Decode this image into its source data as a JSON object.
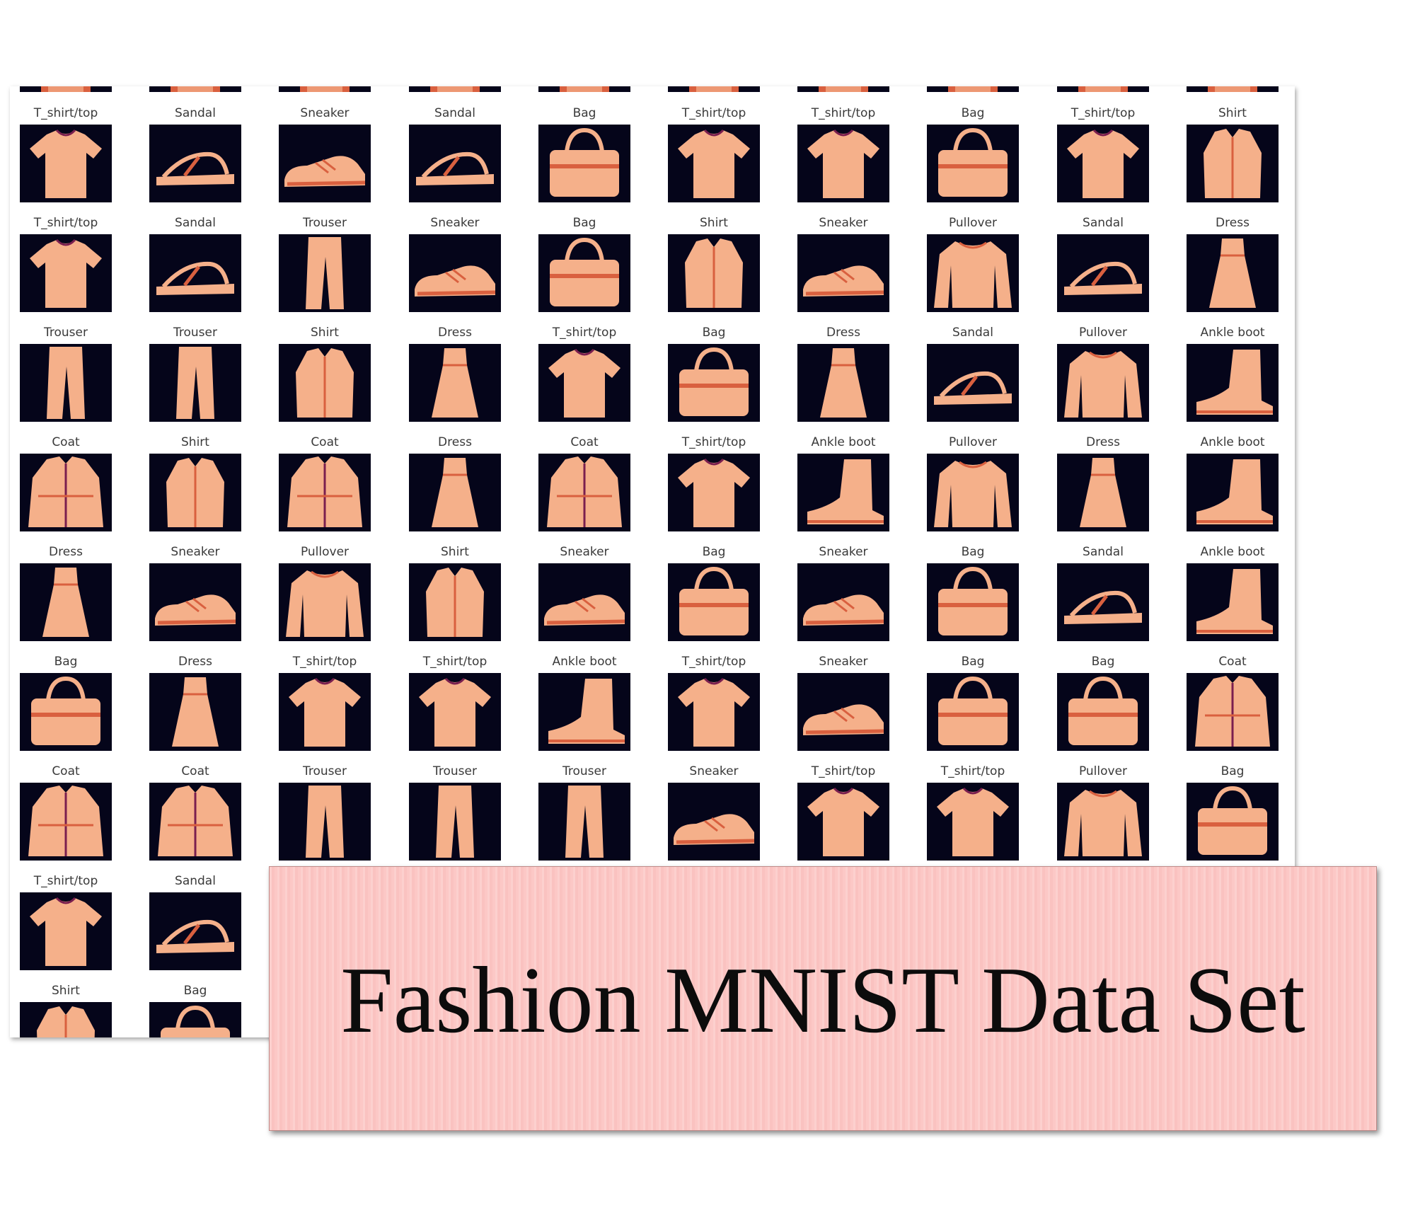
{
  "title": "Fashion MNIST Data Set",
  "colors": {
    "thumb_background": "#05051a",
    "item_light": "#f5b08a",
    "item_mid": "#d9603f",
    "item_dark": "#7a1f4f",
    "card_background": "#fcc8c6"
  },
  "grid": {
    "top_row_partial_labels": [],
    "rows": [
      [
        "",
        "",
        "",
        "",
        "",
        "",
        "",
        "",
        "",
        ""
      ],
      [
        "T_shirt/top",
        "Sandal",
        "Sneaker",
        "Sandal",
        "Bag",
        "T_shirt/top",
        "T_shirt/top",
        "Bag",
        "T_shirt/top",
        "Shirt"
      ],
      [
        "T_shirt/top",
        "Sandal",
        "Trouser",
        "Sneaker",
        "Bag",
        "Shirt",
        "Sneaker",
        "Pullover",
        "Sandal",
        "Dress"
      ],
      [
        "Trouser",
        "Trouser",
        "Shirt",
        "Dress",
        "T_shirt/top",
        "Bag",
        "Dress",
        "Sandal",
        "Pullover",
        "Ankle boot"
      ],
      [
        "Coat",
        "Shirt",
        "Coat",
        "Dress",
        "Coat",
        "T_shirt/top",
        "Ankle boot",
        "Pullover",
        "Dress",
        "Ankle boot"
      ],
      [
        "Dress",
        "Sneaker",
        "Pullover",
        "Shirt",
        "Sneaker",
        "Bag",
        "Sneaker",
        "Bag",
        "Sandal",
        "Ankle boot"
      ],
      [
        "Bag",
        "Dress",
        "T_shirt/top",
        "T_shirt/top",
        "Ankle boot",
        "T_shirt/top",
        "Sneaker",
        "Bag",
        "Bag",
        "Coat"
      ],
      [
        "Coat",
        "Coat",
        "Trouser",
        "Trouser",
        "Trouser",
        "Sneaker",
        "T_shirt/top",
        "T_shirt/top",
        "Pullover",
        "Bag"
      ],
      [
        "T_shirt/top",
        "Sandal"
      ],
      [
        "Shirt",
        "Bag"
      ]
    ]
  }
}
